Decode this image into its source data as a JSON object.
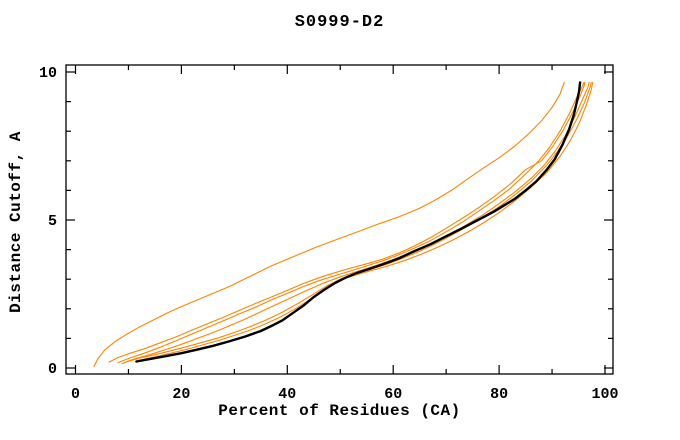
{
  "title": "S0999-D2",
  "chart_data": {
    "type": "line",
    "title": "S0999-D2",
    "xlabel": "Percent of Residues (CA)",
    "ylabel": "Distance Cutoff, A",
    "xlim": [
      0,
      100
    ],
    "ylim": [
      0,
      10
    ],
    "x_major_ticks": [
      0,
      20,
      40,
      60,
      80,
      100
    ],
    "x_minor_ticks": [
      10,
      30,
      50,
      70,
      90
    ],
    "y_major_ticks": [
      0,
      5,
      10
    ],
    "y_minor_ticks": [
      1,
      2,
      3,
      4,
      6,
      7,
      8,
      9
    ],
    "grid": false,
    "legend_position": "none",
    "frame_color": "#000000",
    "background_color": "#ffffff",
    "accent_color": "#ff8400",
    "series": [
      {
        "name": "black-reference-curve",
        "color": "#000000",
        "width": 2.4,
        "points": [
          [
            11.5,
            0.22
          ],
          [
            14,
            0.3
          ],
          [
            17,
            0.4
          ],
          [
            20,
            0.5
          ],
          [
            23,
            0.62
          ],
          [
            26,
            0.75
          ],
          [
            29,
            0.9
          ],
          [
            32,
            1.06
          ],
          [
            35,
            1.25
          ],
          [
            37,
            1.42
          ],
          [
            39,
            1.6
          ],
          [
            41,
            1.85
          ],
          [
            43,
            2.1
          ],
          [
            45,
            2.4
          ],
          [
            47,
            2.65
          ],
          [
            49,
            2.87
          ],
          [
            51,
            3.05
          ],
          [
            53,
            3.2
          ],
          [
            55,
            3.32
          ],
          [
            58,
            3.5
          ],
          [
            61,
            3.7
          ],
          [
            64,
            3.95
          ],
          [
            67,
            4.18
          ],
          [
            70,
            4.45
          ],
          [
            73,
            4.72
          ],
          [
            76,
            5.0
          ],
          [
            79,
            5.28
          ],
          [
            81,
            5.5
          ],
          [
            83,
            5.72
          ],
          [
            85,
            6.0
          ],
          [
            87,
            6.3
          ],
          [
            89,
            6.7
          ],
          [
            90.5,
            7.05
          ],
          [
            92,
            7.55
          ],
          [
            93.2,
            8.05
          ],
          [
            94.1,
            8.55
          ],
          [
            94.7,
            9.0
          ],
          [
            95.1,
            9.35
          ],
          [
            95.3,
            9.65
          ]
        ]
      },
      {
        "name": "orange-model-1",
        "color": "#ff8400",
        "width": 1.1,
        "points": [
          [
            3.5,
            0.05
          ],
          [
            4.2,
            0.3
          ],
          [
            5.5,
            0.6
          ],
          [
            7.5,
            0.9
          ],
          [
            9.5,
            1.12
          ],
          [
            12,
            1.38
          ],
          [
            15,
            1.65
          ],
          [
            18,
            1.92
          ],
          [
            21,
            2.15
          ],
          [
            25,
            2.45
          ],
          [
            29,
            2.75
          ],
          [
            33,
            3.1
          ],
          [
            37,
            3.45
          ],
          [
            41,
            3.75
          ],
          [
            45,
            4.05
          ],
          [
            49,
            4.32
          ],
          [
            53,
            4.58
          ],
          [
            57,
            4.85
          ],
          [
            61,
            5.1
          ],
          [
            65,
            5.4
          ],
          [
            68,
            5.68
          ],
          [
            71,
            6.0
          ],
          [
            74,
            6.38
          ],
          [
            77,
            6.75
          ],
          [
            80,
            7.1
          ],
          [
            83,
            7.5
          ],
          [
            85.5,
            7.9
          ],
          [
            88,
            8.35
          ],
          [
            90,
            8.8
          ],
          [
            91.5,
            9.25
          ],
          [
            92.3,
            9.65
          ]
        ]
      },
      {
        "name": "orange-model-2",
        "color": "#ff8400",
        "width": 1.1,
        "points": [
          [
            6.3,
            0.2
          ],
          [
            8,
            0.35
          ],
          [
            10,
            0.48
          ],
          [
            13,
            0.65
          ],
          [
            16,
            0.85
          ],
          [
            19,
            1.05
          ],
          [
            22,
            1.28
          ],
          [
            25,
            1.5
          ],
          [
            28,
            1.72
          ],
          [
            31,
            1.95
          ],
          [
            34,
            2.18
          ],
          [
            37,
            2.4
          ],
          [
            40,
            2.62
          ],
          [
            43,
            2.85
          ],
          [
            46,
            3.05
          ],
          [
            49,
            3.22
          ],
          [
            52,
            3.38
          ],
          [
            55,
            3.52
          ],
          [
            58,
            3.68
          ],
          [
            61,
            3.88
          ],
          [
            64,
            4.12
          ],
          [
            67,
            4.4
          ],
          [
            70,
            4.72
          ],
          [
            73,
            5.05
          ],
          [
            76,
            5.4
          ],
          [
            79,
            5.78
          ],
          [
            82,
            6.2
          ],
          [
            85,
            6.7
          ],
          [
            88,
            7.0
          ],
          [
            90,
            7.45
          ],
          [
            92,
            8.0
          ],
          [
            93.8,
            8.6
          ],
          [
            95.2,
            9.15
          ],
          [
            96.0,
            9.5
          ],
          [
            96.2,
            9.65
          ]
        ]
      },
      {
        "name": "orange-model-3",
        "color": "#ff8400",
        "width": 1.1,
        "points": [
          [
            8,
            0.18
          ],
          [
            10,
            0.32
          ],
          [
            13,
            0.5
          ],
          [
            16,
            0.7
          ],
          [
            19,
            0.92
          ],
          [
            22,
            1.15
          ],
          [
            25,
            1.38
          ],
          [
            28,
            1.6
          ],
          [
            31,
            1.83
          ],
          [
            34,
            2.05
          ],
          [
            37,
            2.3
          ],
          [
            40,
            2.52
          ],
          [
            43,
            2.75
          ],
          [
            46,
            2.95
          ],
          [
            49,
            3.12
          ],
          [
            52,
            3.28
          ],
          [
            55,
            3.45
          ],
          [
            58,
            3.62
          ],
          [
            61,
            3.82
          ],
          [
            64,
            4.05
          ],
          [
            67,
            4.3
          ],
          [
            70,
            4.6
          ],
          [
            73,
            4.92
          ],
          [
            76,
            5.28
          ],
          [
            79,
            5.65
          ],
          [
            82,
            6.05
          ],
          [
            85,
            6.55
          ],
          [
            87.5,
            7.0
          ],
          [
            89.5,
            7.45
          ],
          [
            91.5,
            8.0
          ],
          [
            93.3,
            8.6
          ],
          [
            94.8,
            9.2
          ],
          [
            95.8,
            9.55
          ],
          [
            96.0,
            9.65
          ]
        ]
      },
      {
        "name": "orange-model-4",
        "color": "#ff8400",
        "width": 1.1,
        "points": [
          [
            8.8,
            0.15
          ],
          [
            11,
            0.3
          ],
          [
            14,
            0.45
          ],
          [
            17,
            0.62
          ],
          [
            20,
            0.8
          ],
          [
            23,
            1.0
          ],
          [
            26,
            1.2
          ],
          [
            29,
            1.42
          ],
          [
            32,
            1.65
          ],
          [
            35,
            1.9
          ],
          [
            38,
            2.15
          ],
          [
            41,
            2.4
          ],
          [
            44,
            2.65
          ],
          [
            47,
            2.88
          ],
          [
            50,
            3.08
          ],
          [
            53,
            3.25
          ],
          [
            56,
            3.42
          ],
          [
            59,
            3.6
          ],
          [
            62,
            3.8
          ],
          [
            65,
            4.02
          ],
          [
            68,
            4.28
          ],
          [
            71,
            4.55
          ],
          [
            74,
            4.85
          ],
          [
            77,
            5.18
          ],
          [
            80,
            5.55
          ],
          [
            83,
            5.95
          ],
          [
            86,
            6.4
          ],
          [
            88.5,
            6.85
          ],
          [
            90.5,
            7.3
          ],
          [
            92.5,
            7.85
          ],
          [
            94.2,
            8.45
          ],
          [
            95.7,
            9.05
          ],
          [
            96.8,
            9.5
          ],
          [
            97.0,
            9.65
          ]
        ]
      },
      {
        "name": "orange-model-5",
        "color": "#ff8400",
        "width": 1.1,
        "points": [
          [
            9.5,
            0.2
          ],
          [
            12,
            0.33
          ],
          [
            15,
            0.45
          ],
          [
            18,
            0.58
          ],
          [
            21,
            0.72
          ],
          [
            24,
            0.87
          ],
          [
            27,
            1.02
          ],
          [
            30,
            1.2
          ],
          [
            33,
            1.4
          ],
          [
            36,
            1.62
          ],
          [
            39,
            1.88
          ],
          [
            42,
            2.18
          ],
          [
            45,
            2.5
          ],
          [
            47.5,
            2.78
          ],
          [
            50,
            3.0
          ],
          [
            53,
            3.18
          ],
          [
            56,
            3.35
          ],
          [
            59,
            3.52
          ],
          [
            62,
            3.72
          ],
          [
            65,
            3.95
          ],
          [
            68,
            4.2
          ],
          [
            71,
            4.48
          ],
          [
            74,
            4.78
          ],
          [
            77,
            5.1
          ],
          [
            80,
            5.45
          ],
          [
            83,
            5.85
          ],
          [
            86,
            6.3
          ],
          [
            89,
            6.85
          ],
          [
            91,
            7.3
          ],
          [
            93,
            7.85
          ],
          [
            94.8,
            8.45
          ],
          [
            96.2,
            9.0
          ],
          [
            97.2,
            9.5
          ],
          [
            97.4,
            9.65
          ]
        ]
      },
      {
        "name": "orange-model-6",
        "color": "#ff8400",
        "width": 1.1,
        "points": [
          [
            11.8,
            0.25
          ],
          [
            15,
            0.38
          ],
          [
            18,
            0.5
          ],
          [
            21,
            0.63
          ],
          [
            24,
            0.78
          ],
          [
            27,
            0.93
          ],
          [
            30,
            1.1
          ],
          [
            33,
            1.28
          ],
          [
            36,
            1.5
          ],
          [
            39,
            1.75
          ],
          [
            42,
            2.05
          ],
          [
            45,
            2.4
          ],
          [
            48,
            2.75
          ],
          [
            50.5,
            3.0
          ],
          [
            53,
            3.15
          ],
          [
            56,
            3.3
          ],
          [
            59,
            3.45
          ],
          [
            62,
            3.62
          ],
          [
            65,
            3.82
          ],
          [
            68,
            4.05
          ],
          [
            71,
            4.3
          ],
          [
            74,
            4.58
          ],
          [
            77,
            4.9
          ],
          [
            80,
            5.25
          ],
          [
            83,
            5.65
          ],
          [
            86,
            6.1
          ],
          [
            89,
            6.6
          ],
          [
            91.5,
            7.15
          ],
          [
            93.5,
            7.7
          ],
          [
            95.2,
            8.3
          ],
          [
            96.5,
            8.9
          ],
          [
            97.4,
            9.4
          ],
          [
            97.7,
            9.65
          ]
        ]
      }
    ]
  }
}
